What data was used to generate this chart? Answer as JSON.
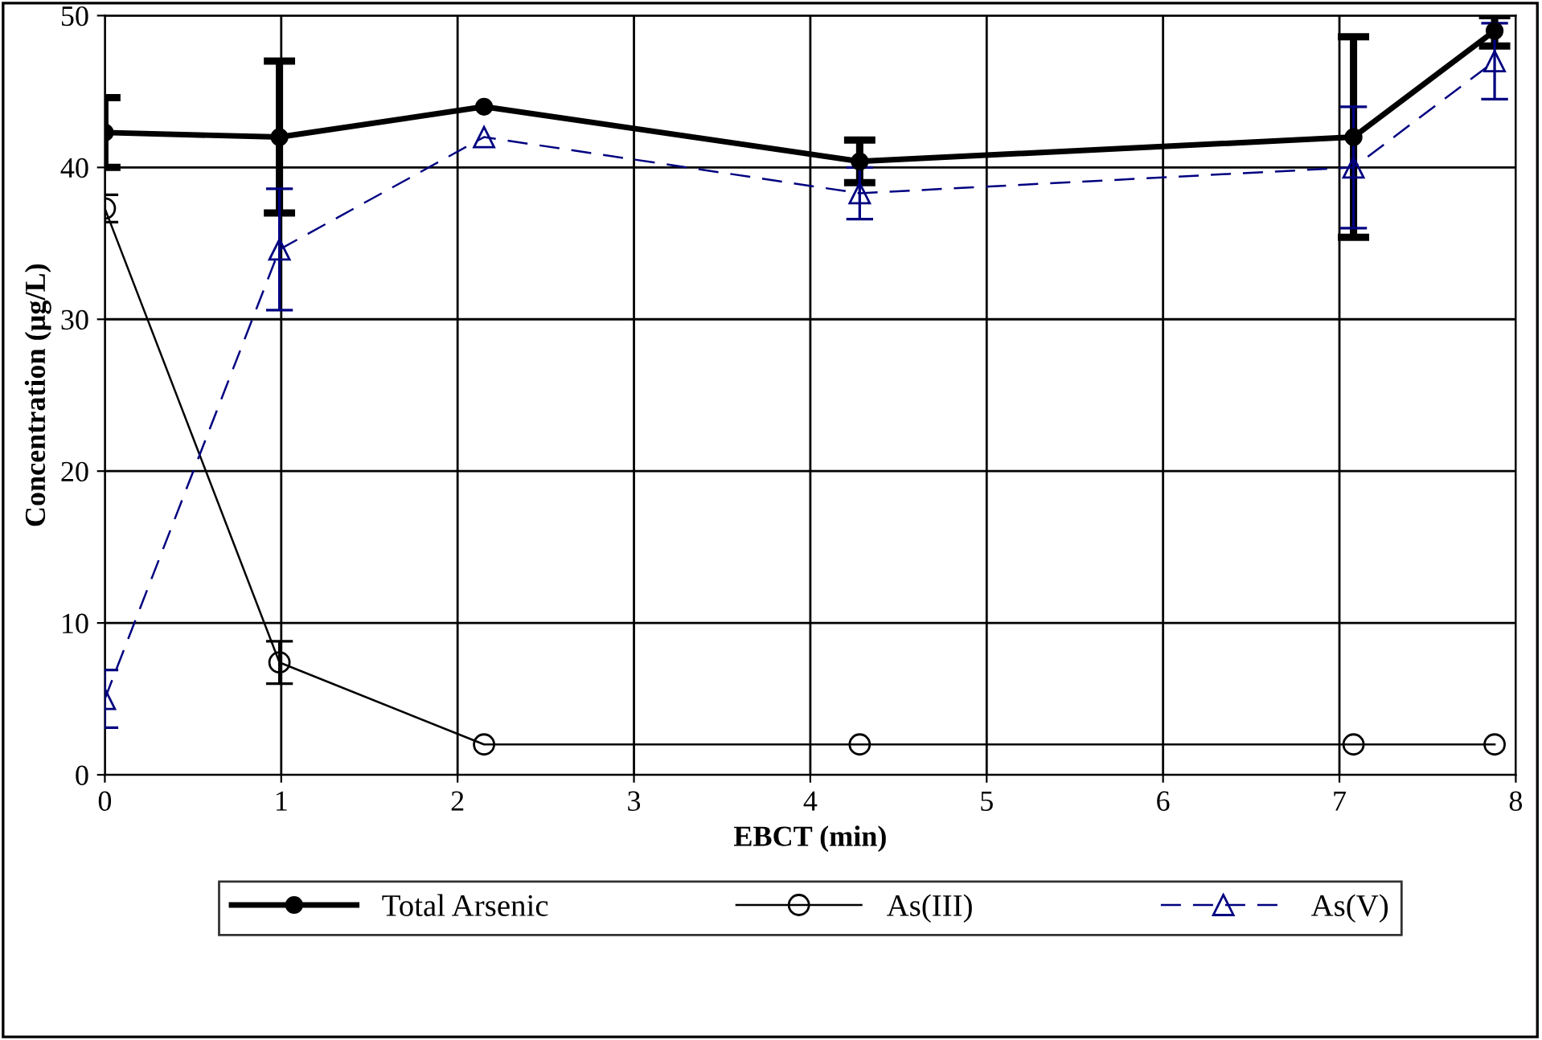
{
  "chart_data": {
    "type": "line",
    "xlabel": "EBCT (min)",
    "ylabel": "Concentration (µg/L)",
    "xlim": [
      0,
      8
    ],
    "xticks": [
      0,
      1,
      2,
      3,
      4,
      5,
      6,
      7,
      8
    ],
    "ylim": [
      0,
      50
    ],
    "yticks": [
      0,
      10,
      20,
      30,
      40,
      50
    ],
    "grid": true,
    "legend": "bottom",
    "series": [
      {
        "name": "Total Arsenic",
        "color": "#000000",
        "marker": "circle",
        "line_style": "solid",
        "x": [
          0,
          0.99,
          2.15,
          4.28,
          7.08,
          7.88
        ],
        "values": [
          42.3,
          42,
          44,
          40.4,
          42,
          49
        ],
        "errors": [
          2.3,
          5,
          null,
          1.4,
          6.6,
          1
        ]
      },
      {
        "name": "As(III)",
        "color": "#000000",
        "marker": "circle",
        "line_style": "solid",
        "x": [
          0,
          0.99,
          2.15,
          4.28,
          7.08,
          7.88
        ],
        "values": [
          37.3,
          7.4,
          2,
          2,
          2,
          2
        ],
        "errors": [
          0.9,
          1.4,
          null,
          null,
          null,
          null
        ]
      },
      {
        "name": "As(V)",
        "color": "#000080",
        "marker": "triangle",
        "line_style": "dashed",
        "x": [
          0,
          0.99,
          2.15,
          4.28,
          7.08,
          7.88
        ],
        "values": [
          5,
          34.6,
          42,
          38.3,
          40,
          47
        ],
        "errors": [
          1.9,
          4,
          null,
          1.7,
          4,
          2.5
        ]
      }
    ]
  }
}
